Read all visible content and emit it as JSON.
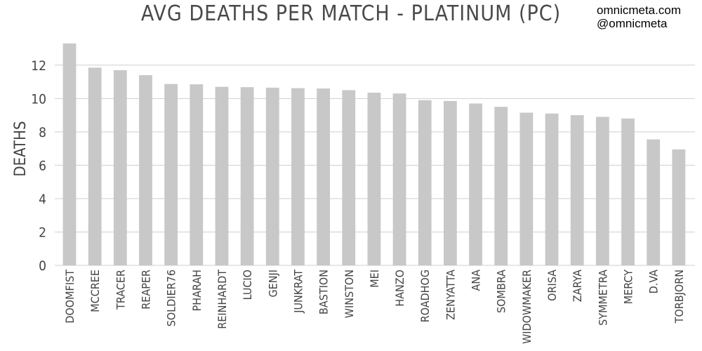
{
  "title": "AVG DEATHS PER MATCH - PLATINUM (PC)",
  "brand": {
    "url": "omnicmeta.com",
    "handle": "@omnicmeta"
  },
  "colors": {
    "bar": "#c8c8c8",
    "grid": "#cfcfcf",
    "text": "#444444"
  },
  "chart_data": {
    "type": "bar",
    "title": "AVG DEATHS PER MATCH - PLATINUM (PC)",
    "xlabel": "",
    "ylabel": "DEATHS",
    "ylim": [
      0,
      13.8
    ],
    "yticks": [
      0,
      2,
      4,
      6,
      8,
      10,
      12
    ],
    "grid": true,
    "categories": [
      "DOOMFIST",
      "MCCREE",
      "TRACER",
      "REAPER",
      "SOLDIER76",
      "PHARAH",
      "REINHARDT",
      "LUCIO",
      "GENJI",
      "JUNKRAT",
      "BASTION",
      "WINSTON",
      "MEI",
      "HANZO",
      "ROADHOG",
      "ZENYATTA",
      "ANA",
      "SOMBRA",
      "WIDOWMAKER",
      "ORISA",
      "ZARYA",
      "SYMMETRA",
      "MERCY",
      "D.VA",
      "TORBJORN"
    ],
    "values": [
      13.3,
      11.85,
      11.7,
      11.4,
      10.87,
      10.85,
      10.7,
      10.68,
      10.65,
      10.62,
      10.6,
      10.5,
      10.35,
      10.3,
      9.9,
      9.85,
      9.7,
      9.5,
      9.15,
      9.1,
      9.0,
      8.9,
      8.8,
      7.55,
      6.95
    ]
  }
}
